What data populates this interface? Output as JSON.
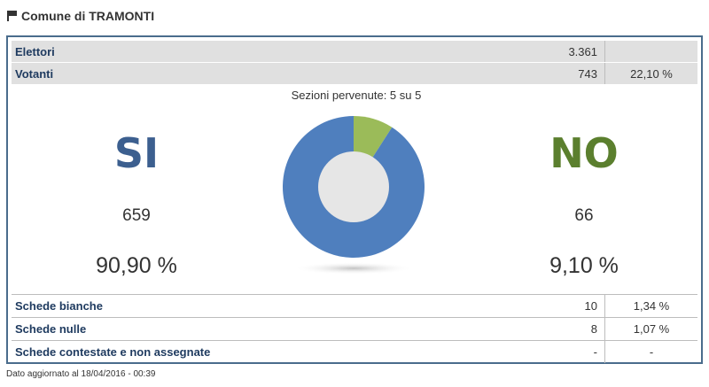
{
  "header": {
    "title": "Comune di TRAMONTI",
    "icon": "flag-icon"
  },
  "stats": {
    "elettori": {
      "label": "Elettori",
      "value": "3.361"
    },
    "votanti": {
      "label": "Votanti",
      "value": "743",
      "pct": "22,10 %"
    }
  },
  "sezioni": "Sezioni pervenute: 5 su 5",
  "si": {
    "label": "SI",
    "count": "659",
    "pct": "90,90 %",
    "color": "#3c5f8f"
  },
  "no": {
    "label": "NO",
    "count": "66",
    "pct": "9,10 %",
    "color": "#5b7f2e"
  },
  "chart_data": {
    "type": "pie",
    "categories": [
      "SI",
      "NO"
    ],
    "values": [
      90.9,
      9.1
    ],
    "colors": [
      "#4f7fbe",
      "#9bbb59"
    ]
  },
  "schede": [
    {
      "label": "Schede bianche",
      "value": "10",
      "pct": "1,34 %"
    },
    {
      "label": "Schede nulle",
      "value": "8",
      "pct": "1,07 %"
    },
    {
      "label": "Schede contestate e non assegnate",
      "value": "-",
      "pct": "-"
    }
  ],
  "footer": "Dato aggiornato al 18/04/2016 - 00:39"
}
